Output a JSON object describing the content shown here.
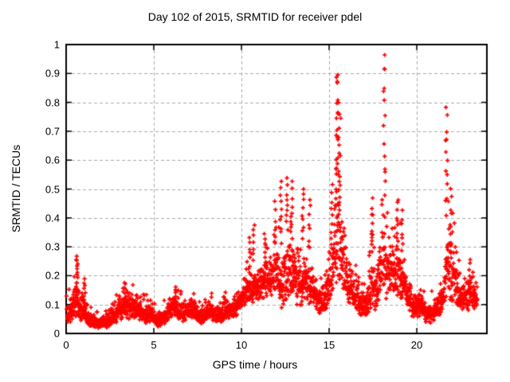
{
  "chart_data": {
    "type": "scatter",
    "title": "Day 102 of 2015, SRMTID for receiver pdel",
    "xlabel": "GPS time / hours",
    "ylabel": "SRMTID / TECUs",
    "xlim": [
      0,
      24
    ],
    "ylim": [
      0,
      1
    ],
    "xticks": [
      0,
      5,
      10,
      15,
      20
    ],
    "xtick_labels": [
      "0",
      "5",
      "10",
      "15",
      "20"
    ],
    "yticks": [
      0,
      0.1,
      0.2,
      0.3,
      0.4,
      0.5,
      0.6,
      0.7,
      0.8,
      0.9,
      1
    ],
    "ytick_labels": [
      "0",
      "0.1",
      "0.2",
      "0.3",
      "0.4",
      "0.5",
      "0.6",
      "0.7",
      "0.8",
      "0.9",
      "1"
    ],
    "grid": true,
    "grid_color": "#a8a8a8",
    "border_color": "#000000",
    "marker": "plus",
    "marker_color": "#ff0000",
    "x_start": 0.03,
    "x_end": 23.45,
    "band_points_per_hour": 115,
    "band_keypoints": [
      [
        0.0,
        0.03,
        0.13
      ],
      [
        0.3,
        0.04,
        0.12
      ],
      [
        0.5,
        0.05,
        0.18
      ],
      [
        0.7,
        0.05,
        0.16
      ],
      [
        0.9,
        0.04,
        0.13
      ],
      [
        1.05,
        0.04,
        0.15
      ],
      [
        1.3,
        0.02,
        0.09
      ],
      [
        1.6,
        0.02,
        0.07
      ],
      [
        2.0,
        0.015,
        0.06
      ],
      [
        2.4,
        0.02,
        0.07
      ],
      [
        2.7,
        0.03,
        0.1
      ],
      [
        3.0,
        0.04,
        0.13
      ],
      [
        3.3,
        0.05,
        0.16
      ],
      [
        3.7,
        0.05,
        0.15
      ],
      [
        4.0,
        0.05,
        0.14
      ],
      [
        4.3,
        0.04,
        0.12
      ],
      [
        4.6,
        0.03,
        0.11
      ],
      [
        4.9,
        0.04,
        0.11
      ],
      [
        5.2,
        0.02,
        0.07
      ],
      [
        5.5,
        0.025,
        0.08
      ],
      [
        5.8,
        0.04,
        0.12
      ],
      [
        6.1,
        0.05,
        0.15
      ],
      [
        6.4,
        0.04,
        0.13
      ],
      [
        6.7,
        0.04,
        0.11
      ],
      [
        7.0,
        0.05,
        0.12
      ],
      [
        7.3,
        0.05,
        0.13
      ],
      [
        7.6,
        0.03,
        0.09
      ],
      [
        7.9,
        0.04,
        0.1
      ],
      [
        8.2,
        0.05,
        0.12
      ],
      [
        8.5,
        0.04,
        0.11
      ],
      [
        8.8,
        0.03,
        0.1
      ],
      [
        9.1,
        0.05,
        0.12
      ],
      [
        9.4,
        0.05,
        0.13
      ],
      [
        9.7,
        0.06,
        0.14
      ],
      [
        10.0,
        0.08,
        0.18
      ],
      [
        10.3,
        0.1,
        0.22
      ],
      [
        10.6,
        0.1,
        0.24
      ],
      [
        10.9,
        0.11,
        0.22
      ],
      [
        11.2,
        0.12,
        0.25
      ],
      [
        11.5,
        0.12,
        0.27
      ],
      [
        11.8,
        0.13,
        0.3
      ],
      [
        12.1,
        0.13,
        0.33
      ],
      [
        12.4,
        0.06,
        0.28
      ],
      [
        12.7,
        0.12,
        0.33
      ],
      [
        13.0,
        0.12,
        0.3
      ],
      [
        13.3,
        0.08,
        0.26
      ],
      [
        13.6,
        0.1,
        0.28
      ],
      [
        13.9,
        0.1,
        0.26
      ],
      [
        14.2,
        0.08,
        0.2
      ],
      [
        14.5,
        0.06,
        0.16
      ],
      [
        14.8,
        0.08,
        0.19
      ],
      [
        15.1,
        0.1,
        0.3
      ],
      [
        15.35,
        0.15,
        0.55
      ],
      [
        15.55,
        0.18,
        0.65
      ],
      [
        15.75,
        0.15,
        0.5
      ],
      [
        16.0,
        0.1,
        0.3
      ],
      [
        16.3,
        0.09,
        0.22
      ],
      [
        16.6,
        0.08,
        0.2
      ],
      [
        16.9,
        0.05,
        0.14
      ],
      [
        17.2,
        0.06,
        0.18
      ],
      [
        17.45,
        0.08,
        0.3
      ],
      [
        17.7,
        0.08,
        0.24
      ],
      [
        17.95,
        0.1,
        0.35
      ],
      [
        18.2,
        0.12,
        0.45
      ],
      [
        18.45,
        0.1,
        0.35
      ],
      [
        18.7,
        0.12,
        0.32
      ],
      [
        18.95,
        0.12,
        0.38
      ],
      [
        19.2,
        0.12,
        0.3
      ],
      [
        19.5,
        0.08,
        0.2
      ],
      [
        19.8,
        0.05,
        0.15
      ],
      [
        20.1,
        0.06,
        0.15
      ],
      [
        20.4,
        0.05,
        0.14
      ],
      [
        20.65,
        0.02,
        0.11
      ],
      [
        20.9,
        0.04,
        0.12
      ],
      [
        21.2,
        0.05,
        0.14
      ],
      [
        21.5,
        0.07,
        0.18
      ],
      [
        21.75,
        0.12,
        0.4
      ],
      [
        22.0,
        0.1,
        0.35
      ],
      [
        22.25,
        0.08,
        0.28
      ],
      [
        22.5,
        0.07,
        0.2
      ],
      [
        22.8,
        0.07,
        0.18
      ],
      [
        23.0,
        0.08,
        0.22
      ],
      [
        23.2,
        0.08,
        0.18
      ],
      [
        23.45,
        0.09,
        0.2
      ]
    ],
    "spikes": [
      [
        0.62,
        0.14,
        0.27,
        14,
        0.05
      ],
      [
        1.05,
        0.1,
        0.19,
        8,
        0.05
      ],
      [
        3.35,
        0.12,
        0.17,
        6,
        0.08
      ],
      [
        6.2,
        0.11,
        0.16,
        6,
        0.08
      ],
      [
        10.45,
        0.22,
        0.33,
        7,
        0.05
      ],
      [
        10.7,
        0.25,
        0.38,
        7,
        0.05
      ],
      [
        11.35,
        0.24,
        0.35,
        6,
        0.05
      ],
      [
        11.9,
        0.28,
        0.45,
        7,
        0.05
      ],
      [
        12.25,
        0.32,
        0.52,
        10,
        0.06
      ],
      [
        12.6,
        0.38,
        0.53,
        8,
        0.05
      ],
      [
        12.85,
        0.3,
        0.52,
        10,
        0.06
      ],
      [
        13.5,
        0.33,
        0.5,
        9,
        0.07
      ],
      [
        13.9,
        0.3,
        0.47,
        7,
        0.05
      ],
      [
        15.15,
        0.32,
        0.52,
        8,
        0.05
      ],
      [
        15.45,
        0.45,
        0.92,
        22,
        0.07
      ],
      [
        15.6,
        0.4,
        0.78,
        16,
        0.07
      ],
      [
        17.45,
        0.28,
        0.46,
        10,
        0.06
      ],
      [
        18.15,
        0.5,
        0.98,
        13,
        0.05
      ],
      [
        18.9,
        0.3,
        0.47,
        8,
        0.05
      ],
      [
        19.15,
        0.28,
        0.42,
        7,
        0.06
      ],
      [
        21.7,
        0.42,
        0.77,
        13,
        0.06
      ],
      [
        21.95,
        0.28,
        0.5,
        8,
        0.05
      ],
      [
        23.0,
        0.18,
        0.26,
        5,
        0.06
      ]
    ]
  }
}
